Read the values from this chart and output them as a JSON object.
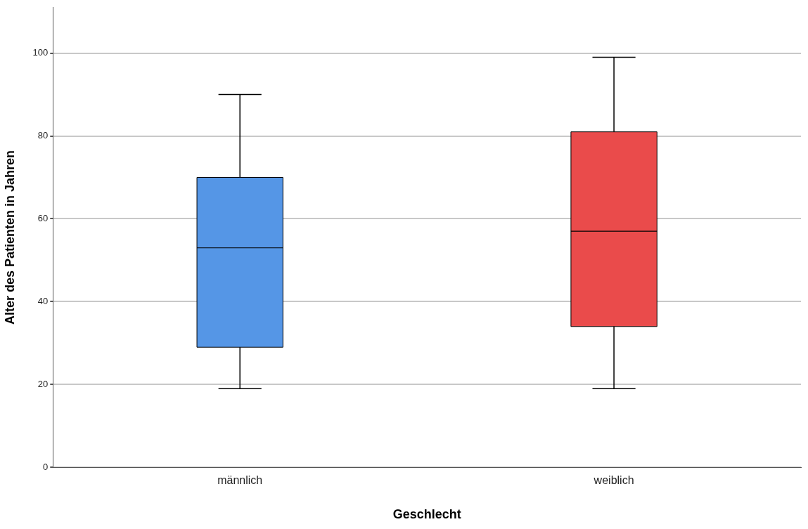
{
  "chart_data": {
    "type": "box",
    "xlabel": "Geschlecht",
    "ylabel": "Alter des Patienten in Jahren",
    "categories": [
      "männlich",
      "weiblich"
    ],
    "boxes": [
      {
        "low": 19,
        "q1": 29,
        "median": 53,
        "q3": 70,
        "high": 90
      },
      {
        "low": 19,
        "q1": 34,
        "median": 57,
        "q3": 81,
        "high": 99
      }
    ],
    "colors": [
      "#5596e6",
      "#ea4b4b"
    ],
    "ylim": [
      0,
      111
    ],
    "yticks": [
      0,
      20,
      40,
      60,
      80,
      100
    ],
    "grid": "y"
  }
}
